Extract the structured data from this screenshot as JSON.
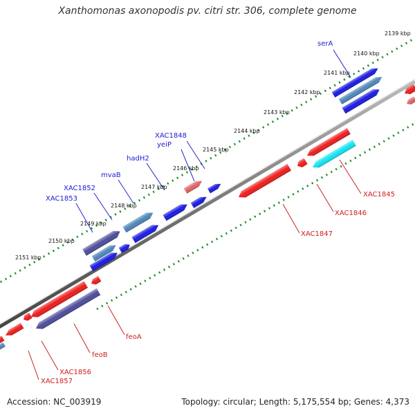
{
  "title": "Xanthomonas axonopodis pv. citri str. 306, complete genome",
  "accession": "Accession: NC_003919",
  "topology": "Topology: circular; Length: 5,175,554 bp; Genes: 4,373",
  "colors": {
    "forward_gene": "#1a1ae0",
    "reverse_gene": "#ee1c1c",
    "cyan_gene": "#12e4f2",
    "purple_gene": "#4c4c9a",
    "steel_gene": "#4e87b8",
    "salmon_gene": "#e06464",
    "forward_label": "#1c1cd0",
    "reverse_label": "#d01c1c",
    "backbone": "#777777",
    "tick": "#1f8a2a"
  },
  "kbp_ticks": [
    "2139 kbp",
    "2140 kbp",
    "2141 kbp",
    "2142 kbp",
    "2143 kbp",
    "2144 kbp",
    "2145 kbp",
    "2146 kbp",
    "2147 kbp",
    "2148 kbp",
    "2149 kbp",
    "2150 kbp",
    "2151 kbp"
  ],
  "forward_labels": [
    "serA",
    "XAC1848",
    "yeiP",
    "hadH2",
    "mvaB",
    "XAC1852",
    "XAC1853"
  ],
  "reverse_labels": [
    "XAC1845",
    "XAC1846",
    "XAC1847",
    "feoA",
    "feoB",
    "XAC1856",
    "XAC1857"
  ]
}
